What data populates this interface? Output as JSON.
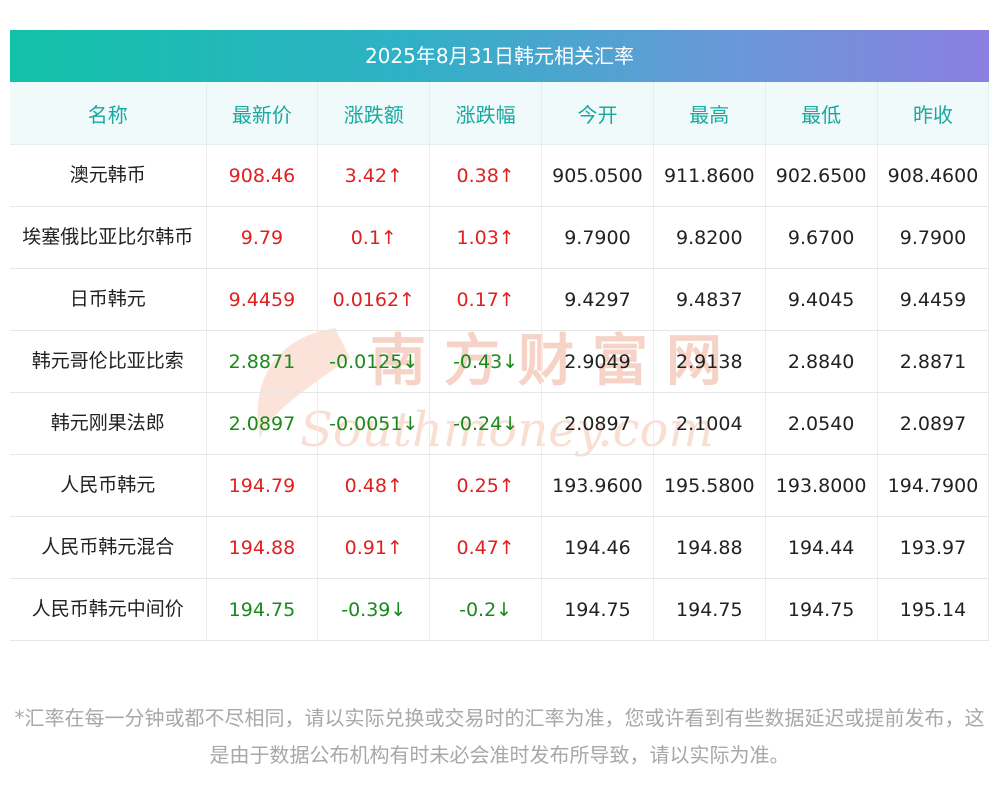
{
  "title": "2025年8月31日韩元相关汇率",
  "columns": [
    "名称",
    "最新价",
    "涨跌额",
    "涨跌幅",
    "今开",
    "最高",
    "最低",
    "昨收"
  ],
  "rows": [
    {
      "name": "澳元韩币",
      "dir": "up",
      "latest": "908.46",
      "change": "3.42↑",
      "pct": "0.38↑",
      "open": "905.0500",
      "high": "911.8600",
      "low": "902.6500",
      "prev": "908.4600"
    },
    {
      "name": "埃塞俄比亚比尔韩币",
      "dir": "up",
      "latest": "9.79",
      "change": "0.1↑",
      "pct": "1.03↑",
      "open": "9.7900",
      "high": "9.8200",
      "low": "9.6700",
      "prev": "9.7900"
    },
    {
      "name": "日币韩元",
      "dir": "up",
      "latest": "9.4459",
      "change": "0.0162↑",
      "pct": "0.17↑",
      "open": "9.4297",
      "high": "9.4837",
      "low": "9.4045",
      "prev": "9.4459"
    },
    {
      "name": "韩元哥伦比亚比索",
      "dir": "down",
      "latest": "2.8871",
      "change": "-0.0125↓",
      "pct": "-0.43↓",
      "open": "2.9049",
      "high": "2.9138",
      "low": "2.8840",
      "prev": "2.8871"
    },
    {
      "name": "韩元刚果法郎",
      "dir": "down",
      "latest": "2.0897",
      "change": "-0.0051↓",
      "pct": "-0.24↓",
      "open": "2.0897",
      "high": "2.1004",
      "low": "2.0540",
      "prev": "2.0897"
    },
    {
      "name": "人民币韩元",
      "dir": "up",
      "latest": "194.79",
      "change": "0.48↑",
      "pct": "0.25↑",
      "open": "193.9600",
      "high": "195.5800",
      "low": "193.8000",
      "prev": "194.7900"
    },
    {
      "name": "人民币韩元混合",
      "dir": "up",
      "latest": "194.88",
      "change": "0.91↑",
      "pct": "0.47↑",
      "open": "194.46",
      "high": "194.88",
      "low": "194.44",
      "prev": "193.97"
    },
    {
      "name": "人民币韩元中间价",
      "dir": "down",
      "latest": "194.75",
      "change": "-0.39↓",
      "pct": "-0.2↓",
      "open": "194.75",
      "high": "194.75",
      "low": "194.75",
      "prev": "195.14"
    }
  ],
  "footnote": "*汇率在每一分钟或都不尽相同，请以实际兑换或交易时的汇率为准，您或许看到有些数据延迟或提前发布，这是由于数据公布机构有时未必会准时发布所导致，请以实际为准。",
  "watermark": {
    "cn": "南方财富网",
    "en": "Southmoney.com"
  },
  "colors": {
    "up": "#e02020",
    "down": "#1a8a1a",
    "header_text": "#18a9a0",
    "header_bg": "#f0fafa",
    "title_start": "#12c2a8",
    "title_end": "#8b7fe0",
    "watermark": "#f6d3c6"
  }
}
